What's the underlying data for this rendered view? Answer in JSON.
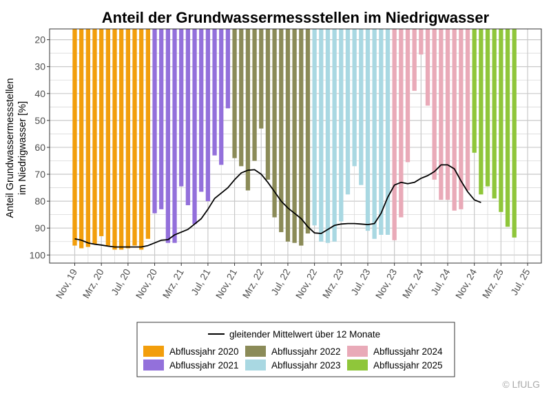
{
  "chart_data": {
    "type": "bar",
    "title": "Anteil der Grundwassermessstellen im Niedrigwasser",
    "ylabel_line1": "Anteil Grundwassermessstellen",
    "ylabel_line2": "im Niedrigwasser [%]",
    "xlabel": "",
    "ylim": [
      16,
      103
    ],
    "y_axis_reversed": true,
    "y_ticks": [
      20,
      30,
      40,
      50,
      60,
      70,
      80,
      90,
      100
    ],
    "x_ticks": [
      "Nov, 19",
      "Mrz, 20",
      "Jul, 20",
      "Nov, 20",
      "Mrz, 21",
      "Jul, 21",
      "Nov, 21",
      "Mrz, 22",
      "Jul, 22",
      "Nov, 22",
      "Mrz, 23",
      "Jul, 23",
      "Nov, 23",
      "Mrz, 24",
      "Jul, 24",
      "Nov, 24",
      "Mrz, 25",
      "Jul, 25"
    ],
    "months": [
      "Nov, 19",
      "Dez, 19",
      "Jan, 20",
      "Feb, 20",
      "Mrz, 20",
      "Apr, 20",
      "Mai, 20",
      "Jun, 20",
      "Jul, 20",
      "Aug, 20",
      "Sep, 20",
      "Okt, 20",
      "Nov, 20",
      "Dez, 20",
      "Jan, 21",
      "Feb, 21",
      "Mrz, 21",
      "Apr, 21",
      "Mai, 21",
      "Jun, 21",
      "Jul, 21",
      "Aug, 21",
      "Sep, 21",
      "Okt, 21",
      "Nov, 21",
      "Dez, 21",
      "Jan, 22",
      "Feb, 22",
      "Mrz, 22",
      "Apr, 22",
      "Mai, 22",
      "Jun, 22",
      "Jul, 22",
      "Aug, 22",
      "Sep, 22",
      "Okt, 22",
      "Nov, 22",
      "Dez, 22",
      "Jan, 23",
      "Feb, 23",
      "Mrz, 23",
      "Apr, 23",
      "Mai, 23",
      "Jun, 23",
      "Jul, 23",
      "Aug, 23",
      "Sep, 23",
      "Okt, 23",
      "Nov, 23",
      "Dez, 23",
      "Jan, 24",
      "Feb, 24",
      "Mrz, 24",
      "Apr, 24",
      "Mai, 24",
      "Jun, 24",
      "Jul, 24",
      "Aug, 24",
      "Sep, 24",
      "Okt, 24",
      "Nov, 24",
      "Dez, 24",
      "Jan, 25",
      "Feb, 25",
      "Mrz, 25",
      "Apr, 25"
    ],
    "values": [
      96.5,
      97.5,
      97,
      96,
      93,
      96.5,
      98,
      98,
      97.5,
      96.5,
      98,
      94,
      84.5,
      83,
      95.5,
      95.5,
      74.5,
      81.5,
      88.5,
      76.5,
      80,
      63,
      66.5,
      45.5,
      64,
      67,
      76,
      65,
      53,
      72,
      86,
      91.5,
      95,
      95.5,
      96.5,
      92,
      89,
      95,
      95.5,
      95,
      87.5,
      77.5,
      67,
      74,
      91,
      94,
      92.5,
      92.5,
      94.5,
      86,
      65.5,
      39,
      25.5,
      44.5,
      72,
      79.5,
      79.5,
      83.5,
      83,
      76,
      62,
      77.5,
      74.5,
      79,
      84,
      89.5
    ],
    "bar_series": [
      {
        "name": "Abflussjahr 2020",
        "color": "#f29e0c",
        "start": 0,
        "end": 12
      },
      {
        "name": "Abflussjahr 2021",
        "color": "#9370db",
        "start": 12,
        "end": 24
      },
      {
        "name": "Abflussjahr 2022",
        "color": "#8b8b58",
        "start": 24,
        "end": 36
      },
      {
        "name": "Abflussjahr 2023",
        "color": "#a9d8e2",
        "start": 36,
        "end": 48
      },
      {
        "name": "Abflussjahr 2024",
        "color": "#e9aab8",
        "start": 48,
        "end": 60
      },
      {
        "name": "Abflussjahr 2025",
        "color": "#8fc63a",
        "start": 60,
        "end": 66
      }
    ],
    "extra_bar": {
      "index": 66,
      "value": 93.5
    },
    "line_series": {
      "name": "gleitender Mittelwert über 12 Monate",
      "color": "#000000",
      "points": [
        [
          0,
          94
        ],
        [
          1,
          94.5
        ],
        [
          2,
          95.5
        ],
        [
          3,
          96
        ],
        [
          4,
          96.3
        ],
        [
          5,
          96.7
        ],
        [
          6,
          97
        ],
        [
          7,
          97
        ],
        [
          8,
          97
        ],
        [
          9,
          97
        ],
        [
          10,
          97
        ],
        [
          11,
          96.5
        ],
        [
          12,
          95.5
        ],
        [
          13,
          94.5
        ],
        [
          14,
          94.3
        ],
        [
          15,
          92.5
        ],
        [
          16,
          91.5
        ],
        [
          17,
          90.5
        ],
        [
          18,
          88.5
        ],
        [
          19,
          86.5
        ],
        [
          20,
          83
        ],
        [
          21,
          79
        ],
        [
          22,
          77
        ],
        [
          23,
          75
        ],
        [
          24,
          72
        ],
        [
          25,
          69.5
        ],
        [
          26,
          68.5
        ],
        [
          27,
          68.3
        ],
        [
          28,
          70
        ],
        [
          29,
          73
        ],
        [
          30,
          76.5
        ],
        [
          31,
          80
        ],
        [
          32,
          82.5
        ],
        [
          33,
          84.5
        ],
        [
          34,
          86.5
        ],
        [
          35,
          89.5
        ],
        [
          36,
          91.8
        ],
        [
          37,
          92
        ],
        [
          38,
          90.5
        ],
        [
          39,
          89
        ],
        [
          40,
          88.5
        ],
        [
          41,
          88.3
        ],
        [
          42,
          88.3
        ],
        [
          43,
          88.5
        ],
        [
          44,
          88.7
        ],
        [
          45,
          88.3
        ],
        [
          46,
          84.5
        ],
        [
          47,
          78.5
        ],
        [
          48,
          74
        ],
        [
          49,
          73
        ],
        [
          50,
          73.5
        ],
        [
          51,
          73
        ],
        [
          52,
          71.5
        ],
        [
          53,
          70.5
        ],
        [
          54,
          69
        ],
        [
          55,
          66.5
        ],
        [
          56,
          66.5
        ],
        [
          57,
          68
        ],
        [
          58,
          72.5
        ],
        [
          59,
          76.5
        ],
        [
          60,
          79.5
        ],
        [
          61,
          80.5
        ]
      ]
    },
    "legend_position": "bottom",
    "grid": true
  },
  "credit": "© LfULG"
}
